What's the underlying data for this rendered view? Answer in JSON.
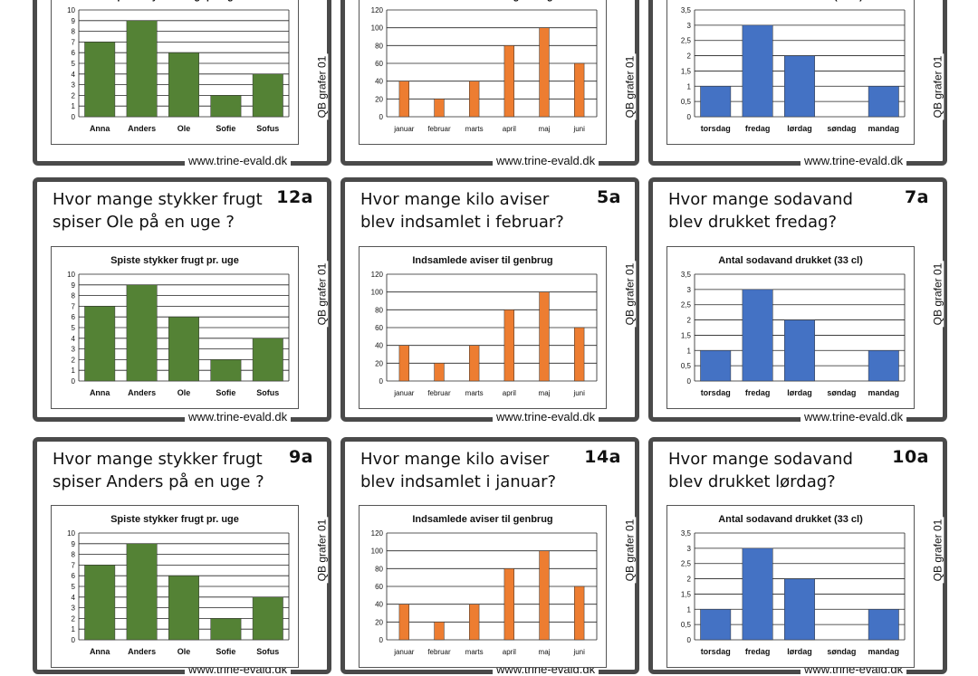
{
  "footer_url": "www.trine-evald.dk",
  "side_label": "QB grafer 01",
  "cards": [
    {
      "id": "",
      "question": "",
      "chart": "frugt"
    },
    {
      "id": "",
      "question": "",
      "chart": "aviser"
    },
    {
      "id": "",
      "question": "",
      "chart": "sodavand"
    },
    {
      "id": "12a",
      "question": "Hvor mange stykker frugt spiser Ole på en uge ?",
      "chart": "frugt"
    },
    {
      "id": "5a",
      "question": "Hvor mange kilo aviser blev indsamlet i februar?",
      "chart": "aviser"
    },
    {
      "id": "7a",
      "question": "Hvor mange sodavand blev drukket fredag?",
      "chart": "sodavand"
    },
    {
      "id": "9a",
      "question": "Hvor mange stykker frugt spiser Anders på en uge ?",
      "chart": "frugt"
    },
    {
      "id": "14a",
      "question": "Hvor mange kilo aviser blev indsamlet i januar?",
      "chart": "aviser"
    },
    {
      "id": "10a",
      "question": "Hvor mange sodavand blev drukket lørdag?",
      "chart": "sodavand"
    }
  ],
  "chart_data": [
    {
      "key": "frugt",
      "type": "bar",
      "title": "Spiste stykker frugt pr. uge",
      "categories": [
        "Anna",
        "Anders",
        "Ole",
        "Sofie",
        "Sofus"
      ],
      "values": [
        7,
        9,
        6,
        2,
        4
      ],
      "ylim": [
        0,
        10
      ],
      "yticks": [
        "0",
        "1",
        "2",
        "3",
        "4",
        "5",
        "6",
        "7",
        "8",
        "9",
        "10"
      ],
      "color": "#548235",
      "grid": true
    },
    {
      "key": "aviser",
      "type": "bar",
      "title": "Indsamlede aviser til genbrug",
      "categories": [
        "januar",
        "februar",
        "marts",
        "april",
        "maj",
        "juni"
      ],
      "values": [
        40,
        20,
        40,
        80,
        100,
        60
      ],
      "ylim": [
        0,
        120
      ],
      "yticks": [
        "0",
        "20",
        "40",
        "60",
        "80",
        "100",
        "120"
      ],
      "color": "#ED7D31",
      "grid": true
    },
    {
      "key": "sodavand",
      "type": "bar",
      "title": "Antal sodavand drukket (33 cl)",
      "categories": [
        "torsdag",
        "fredag",
        "lørdag",
        "søndag",
        "mandag"
      ],
      "values": [
        1,
        3,
        2,
        0,
        1
      ],
      "ylim": [
        0,
        3.5
      ],
      "yticks": [
        "0",
        "0,5",
        "1",
        "1,5",
        "2",
        "2,5",
        "3",
        "3,5"
      ],
      "color": "#4472C4",
      "grid": true
    }
  ]
}
